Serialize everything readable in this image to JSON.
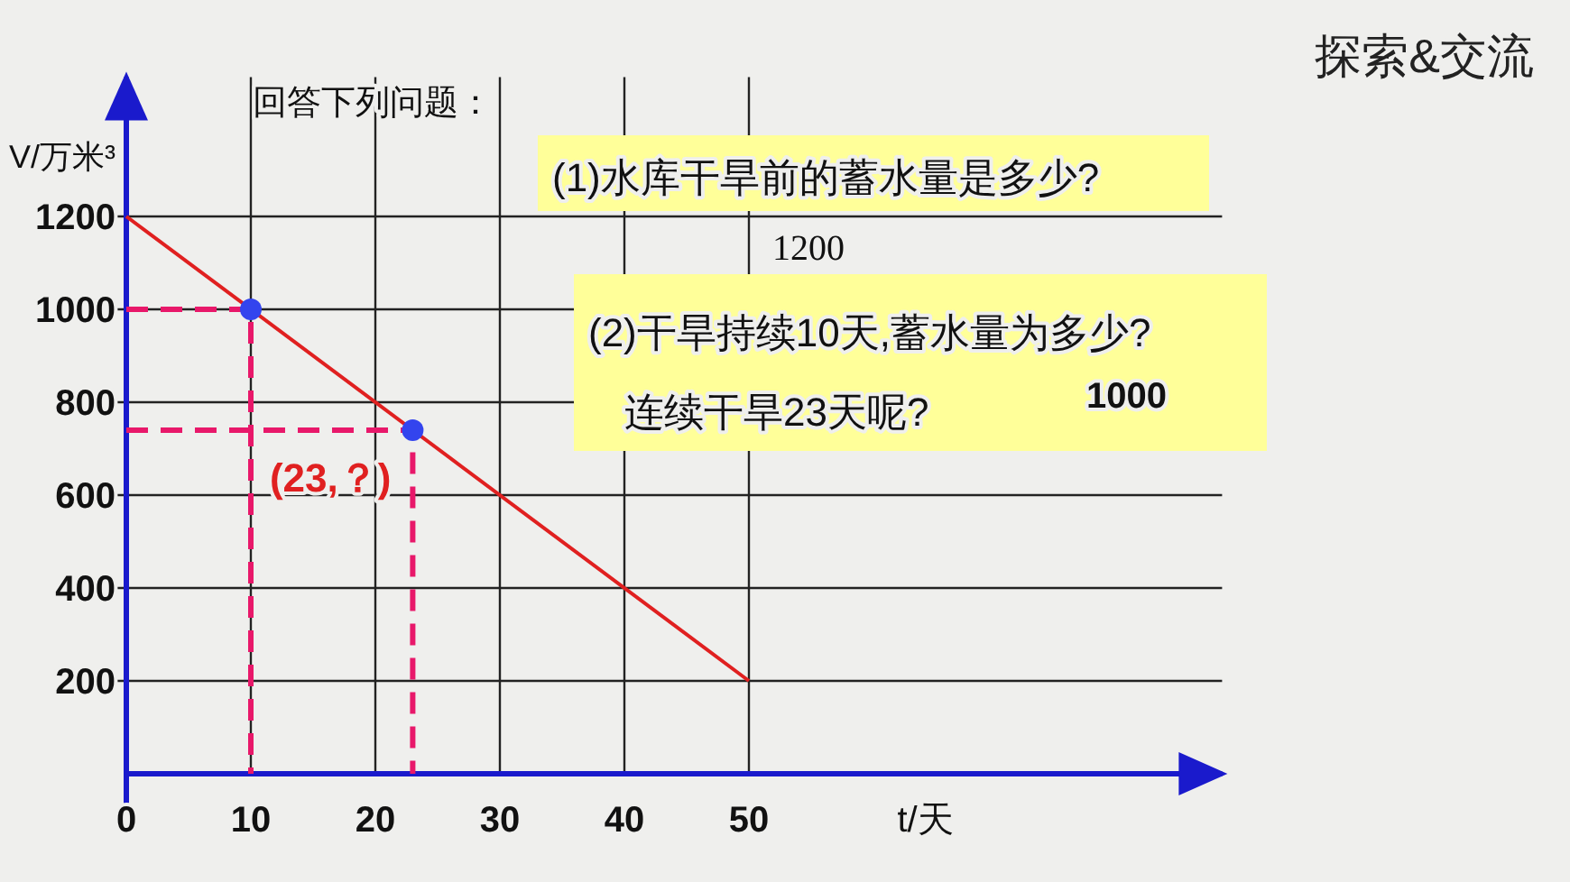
{
  "chart_data": {
    "type": "line",
    "title": "探索&交流",
    "subtitle": "回答下列问题：",
    "xlabel": "t/天",
    "ylabel": "V/万米³",
    "xlim": [
      0,
      88
    ],
    "ylim": [
      0,
      1500
    ],
    "xticks": [
      0,
      10,
      20,
      30,
      40,
      50
    ],
    "yticks": [
      200,
      400,
      600,
      800,
      1000,
      1200
    ],
    "grid": true,
    "series": [
      {
        "color": "#e02020",
        "x": [
          0,
          50
        ],
        "values": [
          1200,
          200
        ],
        "marker": "none"
      },
      {
        "type": "line",
        "color": "#e8186a",
        "line_style": "dashed",
        "x": [
          0,
          10,
          10
        ],
        "values": [
          1000,
          1000,
          0
        ],
        "marker": "none"
      },
      {
        "type": "line",
        "color": "#e8186a",
        "line_style": "dashed",
        "x": [
          0,
          23,
          23
        ],
        "values": [
          740,
          740,
          0
        ],
        "marker": "none"
      },
      {
        "type": "scatter",
        "color": "#3344ee",
        "x": [
          10,
          23
        ],
        "values": [
          1000,
          740
        ],
        "marker": "circle"
      }
    ],
    "annotations": [
      "(1)水库干旱前的蓄水量是多少?",
      "1200",
      "(2)干旱持续10天,蓄水量为多少?",
      "连续干旱23天呢?",
      "1000",
      {
        "text": "(23,？)",
        "x": 23,
        "y": 740
      }
    ]
  }
}
